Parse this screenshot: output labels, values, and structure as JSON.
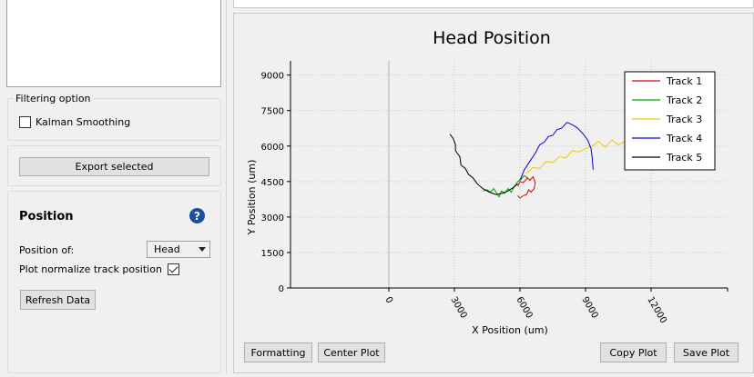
{
  "filtering": {
    "group_title": "Filtering option",
    "kalman_label": "Kalman Smoothing",
    "kalman_checked": false
  },
  "export": {
    "button_label": "Export selected"
  },
  "position": {
    "title": "Position",
    "help_icon": "?",
    "position_of_label": "Position of:",
    "position_of_value": "Head",
    "normalize_label": "Plot normalize track position",
    "normalize_checked": true,
    "refresh_label": "Refresh Data"
  },
  "plot_buttons": {
    "formatting": "Formatting",
    "center_plot": "Center Plot",
    "copy_plot": "Copy Plot",
    "save_plot": "Save Plot"
  },
  "chart_data": {
    "type": "line",
    "title": "Head Position",
    "xlabel": "X Position (um)",
    "ylabel": "Y Position (um)",
    "xlim": [
      -4500,
      15500
    ],
    "ylim": [
      0,
      9600
    ],
    "x_ticks": [
      "0",
      "3000",
      "6000",
      "9000",
      "12000"
    ],
    "y_ticks": [
      "0",
      "1500",
      "3000",
      "4500",
      "6000",
      "7500",
      "9000"
    ],
    "grid": true,
    "legend_position": "top-right",
    "series": [
      {
        "name": "Track 1",
        "color": "#e00000",
        "x": [
          5900,
          6000,
          6150,
          6350,
          6450,
          6600,
          6700,
          6650,
          6500,
          6400,
          6300,
          6150,
          6000,
          5900
        ],
        "y": [
          4300,
          4500,
          4450,
          4650,
          4550,
          4700,
          4450,
          4200,
          4050,
          4150,
          3950,
          3900,
          3800,
          3900
        ]
      },
      {
        "name": "Track 2",
        "color": "#00a000",
        "x": [
          4300,
          4500,
          4650,
          4800,
          4900,
          5050,
          5150,
          5300,
          5450,
          5600,
          5750,
          5900,
          6050,
          6200,
          6350
        ],
        "y": [
          4100,
          4150,
          4050,
          4200,
          4050,
          3850,
          4100,
          4000,
          4200,
          4050,
          4300,
          4500,
          4600,
          4750,
          4650
        ]
      },
      {
        "name": "Track 3",
        "color": "#f0c800",
        "x": [
          6300,
          6600,
          6900,
          7200,
          7500,
          7800,
          8100,
          8400,
          8700,
          9000,
          9300,
          9600,
          9900,
          10200,
          10500,
          10800,
          11100
        ],
        "y": [
          4850,
          5100,
          5050,
          5350,
          5300,
          5550,
          5500,
          5800,
          5750,
          5900,
          6000,
          6200,
          5950,
          6250,
          6050,
          6200,
          6100
        ]
      },
      {
        "name": "Track 4",
        "color": "#0000dd",
        "x": [
          6000,
          6200,
          6450,
          6700,
          6900,
          7100,
          7300,
          7500,
          7700,
          7900,
          8150,
          8400,
          8650,
          8900,
          9100,
          9250,
          9300,
          9350
        ],
        "y": [
          4550,
          5000,
          5350,
          5700,
          6050,
          6150,
          6400,
          6450,
          6700,
          6750,
          7000,
          6900,
          6750,
          6500,
          6250,
          5900,
          5550,
          5000
        ]
      },
      {
        "name": "Track 5",
        "color": "#000000",
        "x": [
          2800,
          2950,
          3050,
          3050,
          3250,
          3300,
          3500,
          3650,
          3850,
          4050,
          4300,
          4600,
          4900,
          5200,
          5450,
          5700,
          5900
        ],
        "y": [
          6500,
          6300,
          6050,
          5800,
          5550,
          5200,
          5050,
          4800,
          4650,
          4400,
          4200,
          4050,
          3950,
          4000,
          4100,
          4250,
          4400
        ]
      }
    ]
  }
}
